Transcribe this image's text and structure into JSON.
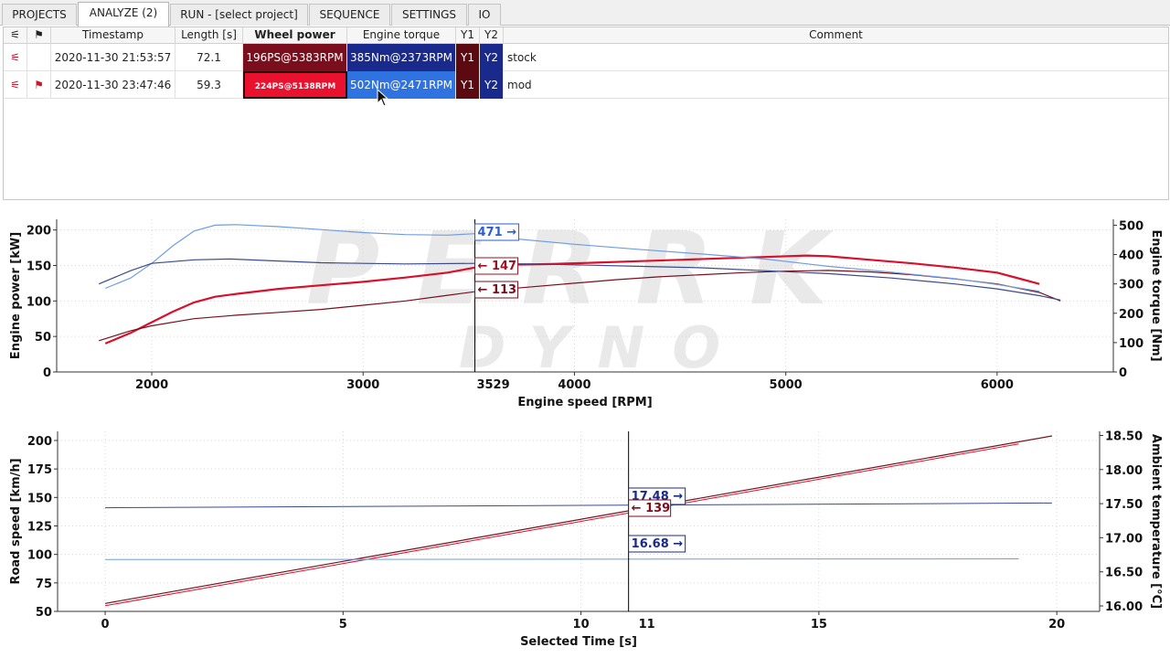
{
  "tabs": [
    {
      "label": "PROJECTS",
      "active": false
    },
    {
      "label": "ANALYZE (2)",
      "active": true
    },
    {
      "label": "RUN - [select project]",
      "active": false
    },
    {
      "label": "SEQUENCE",
      "active": false
    },
    {
      "label": "SETTINGS",
      "active": false
    },
    {
      "label": "IO",
      "active": false
    }
  ],
  "table": {
    "headers": {
      "col_filter": "⚟",
      "col_flag": "⚑",
      "timestamp": "Timestamp",
      "length": "Length [s]",
      "wheel_power": "Wheel power",
      "engine_torque": "Engine torque",
      "y1": "Y1",
      "y2": "Y2",
      "comment": "Comment"
    },
    "rows": [
      {
        "icon": "⚟",
        "flag": "",
        "timestamp": "2020-11-30 21:53:57",
        "length": "72.1",
        "wheel_power": "196PS@5383RPM",
        "engine_torque": "385Nm@2373RPM",
        "y1": "Y1",
        "y2": "Y2",
        "comment": "stock"
      },
      {
        "icon": "⚟",
        "flag": "⚑",
        "timestamp": "2020-11-30 23:47:46",
        "length": "59.3",
        "wheel_power": "224PS@5138RPM",
        "engine_torque": "502Nm@2471RPM",
        "y1": "Y1",
        "y2": "Y2",
        "comment": "mod"
      }
    ]
  },
  "watermark": {
    "line1": "PERRK",
    "line2": "DYNO"
  },
  "colors": {
    "stock_power": "#7a0e1c",
    "mod_power": "#d9102c",
    "stock_torque": "#3a4a8c",
    "mod_torque": "#6f9de0",
    "cursor_blue": "#2a5fd0",
    "cursor_red": "#a01020"
  },
  "chart_data": [
    {
      "type": "line",
      "xlabel": "Engine speed [RPM]",
      "ylabel": "Engine power [kW]",
      "y2label": "Engine torque [Nm]",
      "xlim": [
        1550,
        6550
      ],
      "ylim": [
        0,
        215
      ],
      "y2lim": [
        0,
        520
      ],
      "xticks": [
        2000,
        3000,
        4000,
        5000,
        6000
      ],
      "yticks": [
        0,
        50,
        100,
        150,
        200
      ],
      "y2ticks": [
        0,
        100,
        200,
        300,
        400,
        500
      ],
      "cursor": {
        "x": 3529,
        "label": "3529",
        "readouts": [
          "471 →",
          "← 147",
          "← 113"
        ]
      },
      "series": [
        {
          "axis": "y1",
          "color": "#d9102c",
          "width": 2.2,
          "x": [
            1780,
            1900,
            2000,
            2100,
            2200,
            2300,
            2400,
            2600,
            2800,
            3000,
            3200,
            3400,
            3529,
            3700,
            3900,
            4100,
            4300,
            4500,
            4700,
            4900,
            5100,
            5200,
            5400,
            5600,
            5800,
            6000,
            6100,
            6200
          ],
          "y": [
            40,
            55,
            70,
            85,
            98,
            106,
            110,
            117,
            122,
            127,
            133,
            140,
            147,
            151,
            152,
            154,
            156,
            158,
            160,
            162,
            164,
            163,
            158,
            153,
            147,
            140,
            132,
            124
          ]
        },
        {
          "axis": "y1",
          "color": "#7a0e1c",
          "width": 1.2,
          "x": [
            1750,
            1900,
            2000,
            2200,
            2400,
            2600,
            2800,
            3000,
            3200,
            3400,
            3529,
            3800,
            4000,
            4200,
            4400,
            4600,
            4800,
            5000,
            5200,
            5400,
            5600,
            5800,
            6000,
            6200,
            6300
          ],
          "y": [
            44,
            58,
            65,
            75,
            80,
            84,
            88,
            94,
            100,
            108,
            113,
            120,
            125,
            130,
            134,
            137,
            140,
            142,
            143,
            141,
            137,
            131,
            124,
            112,
            100
          ]
        },
        {
          "axis": "y2",
          "color": "#6f9de0",
          "width": 1.2,
          "x": [
            1780,
            1900,
            2000,
            2100,
            2200,
            2300,
            2400,
            2600,
            2800,
            3000,
            3200,
            3400,
            3529,
            3700,
            4000,
            4300,
            4600,
            4900,
            5200,
            5500,
            5800,
            6000,
            6200
          ],
          "y": [
            285,
            320,
            370,
            430,
            480,
            500,
            502,
            495,
            485,
            475,
            468,
            466,
            471,
            455,
            435,
            418,
            402,
            385,
            360,
            340,
            318,
            298,
            275
          ]
        },
        {
          "axis": "y2",
          "color": "#3a4a8c",
          "width": 1.2,
          "x": [
            1750,
            1900,
            2000,
            2200,
            2373,
            2600,
            2800,
            3000,
            3200,
            3529,
            3800,
            4000,
            4300,
            4600,
            4900,
            5200,
            5500,
            5800,
            6000,
            6200,
            6300
          ],
          "y": [
            300,
            345,
            370,
            382,
            385,
            378,
            372,
            370,
            368,
            370,
            368,
            365,
            360,
            355,
            345,
            335,
            320,
            300,
            283,
            260,
            245
          ]
        }
      ]
    },
    {
      "type": "line",
      "xlabel": "Selected Time [s]",
      "ylabel": "Road speed [km/h]",
      "y2label": "Ambient temperature [°C]",
      "xlim": [
        -1,
        20.9
      ],
      "ylim": [
        50,
        208
      ],
      "y2lim": [
        15.92,
        18.56
      ],
      "xticks": [
        0,
        5,
        10,
        15,
        20
      ],
      "yticks": [
        50,
        75,
        100,
        125,
        150,
        175,
        200
      ],
      "y2ticks": [
        16.0,
        16.5,
        17.0,
        17.5,
        18.0,
        18.5
      ],
      "y2ticklabels": [
        "16.00",
        "16.50",
        "17.00",
        "17.50",
        "18.00",
        "18.50"
      ],
      "cursor": {
        "x": 11,
        "label": "11",
        "readouts": [
          "17.48 →",
          "← 139",
          "16.68 →"
        ]
      },
      "series": [
        {
          "axis": "y1",
          "color": "#7a0e1c",
          "width": 1.2,
          "x": [
            0,
            19.9
          ],
          "y": [
            57,
            204
          ]
        },
        {
          "axis": "y1",
          "color": "#d9102c",
          "width": 1.0,
          "x": [
            0,
            19.2
          ],
          "y": [
            55,
            197
          ]
        },
        {
          "axis": "y2",
          "color": "#3a4a8c",
          "width": 1.0,
          "x": [
            0,
            19.9
          ],
          "y": [
            17.44,
            17.51
          ]
        },
        {
          "axis": "y2",
          "color": "#6f9de0",
          "width": 1.0,
          "x": [
            0,
            19.2
          ],
          "y": [
            16.68,
            16.69
          ]
        }
      ]
    }
  ]
}
